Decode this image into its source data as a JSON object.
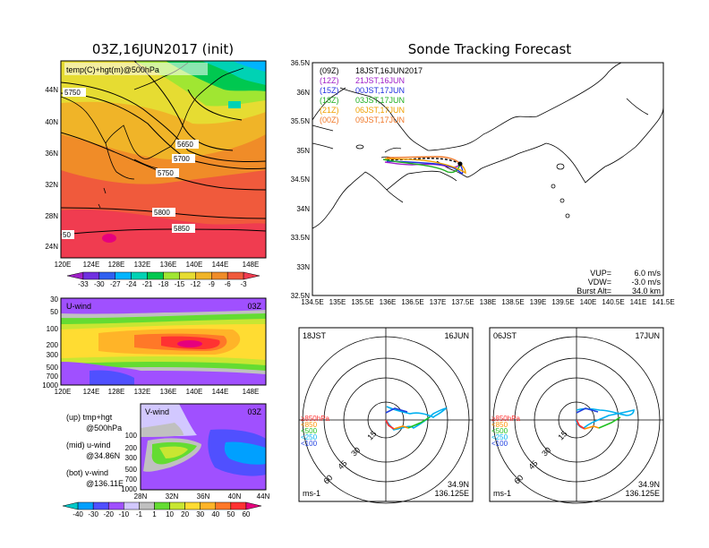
{
  "left": {
    "title": "03Z,16JUN2017 (init)",
    "map_label": "temp(C)+hgt(m)@500hPa",
    "lat_ticks": [
      "44N",
      "40N",
      "36N",
      "32N",
      "28N",
      "24N"
    ],
    "lon_ticks": [
      "120E",
      "124E",
      "128E",
      "132E",
      "136E",
      "140E",
      "144E",
      "148E"
    ],
    "contours": [
      "5750",
      "5650",
      "5700",
      "5750",
      "5800",
      "5850",
      "50"
    ],
    "temp_scale": [
      "-33",
      "-30",
      "-27",
      "-24",
      "-21",
      "-18",
      "-15",
      "-12",
      "-9",
      "-6",
      "-3"
    ],
    "temp_colors": [
      "#a020c8",
      "#7030e0",
      "#3060f0",
      "#00b4ff",
      "#00d2b4",
      "#00c850",
      "#a0e632",
      "#e6dc32",
      "#f0b428",
      "#f08c28",
      "#f05a3c",
      "#f03c50"
    ],
    "uwind": {
      "title": "U-wind",
      "time": "03Z",
      "p_ticks": [
        "30",
        "50",
        "100",
        "200",
        "300",
        "500",
        "700",
        "1000"
      ],
      "lon_ticks": [
        "120E",
        "124E",
        "128E",
        "132E",
        "136E",
        "140E",
        "144E",
        "148E"
      ]
    },
    "vwind": {
      "title": "V-wind",
      "time": "03Z",
      "p_ticks": [
        "100",
        "200",
        "300",
        "500",
        "700",
        "1000"
      ],
      "lat_ticks": [
        "28N",
        "32N",
        "36N",
        "40N",
        "44N"
      ]
    },
    "legend": [
      {
        "a": "(up)  tmp+hgt",
        "b": "@500hPa"
      },
      {
        "a": "(mid)  u-wind",
        "b": "@34.86N"
      },
      {
        "a": "(bot)  v-wind",
        "b": "@136.11E"
      }
    ],
    "wind_scale": [
      "-40",
      "-30",
      "-20",
      "-10",
      "-1",
      "1",
      "10",
      "20",
      "30",
      "40",
      "50",
      "60"
    ],
    "wind_colors": [
      "#00c8c8",
      "#00a0ff",
      "#5050ff",
      "#a050ff",
      "#d2c8ff",
      "#c0c0c0",
      "#64dc32",
      "#c8e632",
      "#ffdc32",
      "#ffb428",
      "#ff7828",
      "#ff3232",
      "#e6007d"
    ]
  },
  "right": {
    "title": "Sonde Tracking Forecast",
    "lat_ticks": [
      "36.5N",
      "36N",
      "35.5N",
      "35N",
      "34.5N",
      "34N",
      "33.5N",
      "33N",
      "32.5N"
    ],
    "lon_ticks": [
      "134.5E",
      "135E",
      "135.5E",
      "136E",
      "136.5E",
      "137E",
      "137.5E",
      "138E",
      "138.5E",
      "139E",
      "139.5E",
      "140E",
      "140.5E",
      "141E",
      "141.5E"
    ],
    "runs": [
      {
        "run": "(09Z)",
        "launch": "18JST,16JUN2017",
        "color": "#000000"
      },
      {
        "run": "(12Z)",
        "launch": "21JST,16JUN",
        "color": "#a020c8"
      },
      {
        "run": "(15Z)",
        "launch": "00JST,17JUN",
        "color": "#2030e0"
      },
      {
        "run": "(18Z)",
        "launch": "03JST,17JUN",
        "color": "#20b020"
      },
      {
        "run": "(21Z)",
        "launch": "06JST,17JUN",
        "color": "#f0a000"
      },
      {
        "run": "(00Z)",
        "launch": "09JST,17JUN",
        "color": "#f07828"
      }
    ],
    "params": [
      {
        "k": "VUP=",
        "v": "6.0 m/s"
      },
      {
        "k": "VDW=",
        "v": "-3.0 m/s"
      },
      {
        "k": "Burst Alt=",
        "v": "34.0 km"
      }
    ]
  },
  "hodographs": [
    {
      "time": "18JST",
      "date": "16JUN",
      "lat": "34.9N",
      "lon": "136.125E",
      "unit": "ms-1",
      "rings": [
        "15",
        "30",
        "45",
        "60"
      ],
      "levels": [
        {
          "t": "≥850hPa",
          "c": "#ff3030"
        },
        {
          "t": "<850",
          "c": "#ff9000"
        },
        {
          "t": "<500",
          "c": "#20c020"
        },
        {
          "t": "<250",
          "c": "#00b0f0"
        },
        {
          "t": "<100",
          "c": "#2040e0"
        }
      ]
    },
    {
      "time": "06JST",
      "date": "17JUN",
      "lat": "34.9N",
      "lon": "136.125E",
      "unit": "ms-1",
      "rings": [
        "15",
        "30",
        "45",
        "60"
      ],
      "levels": [
        {
          "t": "≥850hPa",
          "c": "#ff3030"
        },
        {
          "t": "<850",
          "c": "#ff9000"
        },
        {
          "t": "<500",
          "c": "#20c020"
        },
        {
          "t": "<250",
          "c": "#00b0f0"
        },
        {
          "t": "<100",
          "c": "#2040e0"
        }
      ]
    }
  ]
}
